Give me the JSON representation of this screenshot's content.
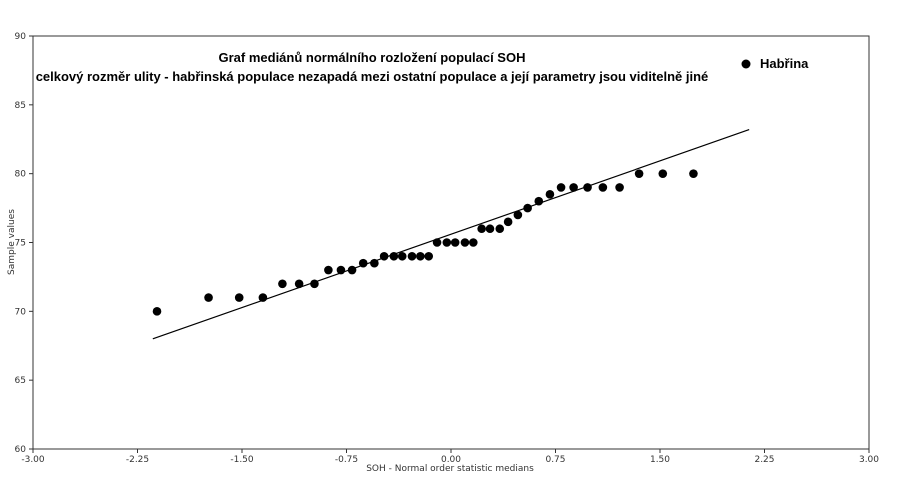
{
  "chart_data": {
    "type": "scatter",
    "title": "Graf mediánů normálního rozložení populací SOH",
    "subtitle": "celkový rozměr ulity - habřinská populace nezapadá mezi ostatní populace a její parametry jsou viditelně jiné",
    "xlabel": "SOH - Normal order statistic medians",
    "ylabel": "Sample values",
    "xlim": [
      -3.0,
      3.0
    ],
    "ylim": [
      60,
      90
    ],
    "xticks": [
      -3.0,
      -2.25,
      -1.5,
      -0.75,
      0.0,
      0.75,
      1.5,
      2.25,
      3.0
    ],
    "xtick_labels": [
      "-3.00",
      "-2.25",
      "-1.50",
      "-0.75",
      "0.00",
      "0.75",
      "1.50",
      "2.25",
      "3.00"
    ],
    "yticks": [
      60,
      65,
      70,
      75,
      80,
      85,
      90
    ],
    "ytick_labels": [
      "60",
      "65",
      "70",
      "75",
      "80",
      "85",
      "90"
    ],
    "grid": false,
    "legend_position": "top-right",
    "series": [
      {
        "name": "Habřina",
        "color": "#000000",
        "points": [
          [
            -2.11,
            70
          ],
          [
            -1.74,
            71
          ],
          [
            -1.52,
            71
          ],
          [
            -1.35,
            71
          ],
          [
            -1.21,
            72
          ],
          [
            -1.09,
            72
          ],
          [
            -0.98,
            72
          ],
          [
            -0.88,
            73
          ],
          [
            -0.79,
            73
          ],
          [
            -0.71,
            73
          ],
          [
            -0.63,
            73.5
          ],
          [
            -0.55,
            73.5
          ],
          [
            -0.48,
            74
          ],
          [
            -0.41,
            74
          ],
          [
            -0.35,
            74
          ],
          [
            -0.28,
            74
          ],
          [
            -0.22,
            74
          ],
          [
            -0.16,
            74
          ],
          [
            -0.1,
            75
          ],
          [
            -0.03,
            75
          ],
          [
            0.03,
            75
          ],
          [
            0.1,
            75
          ],
          [
            0.16,
            75
          ],
          [
            0.22,
            76
          ],
          [
            0.28,
            76
          ],
          [
            0.35,
            76
          ],
          [
            0.41,
            76.5
          ],
          [
            0.48,
            77
          ],
          [
            0.55,
            77.5
          ],
          [
            0.63,
            78
          ],
          [
            0.71,
            78.5
          ],
          [
            0.79,
            79
          ],
          [
            0.88,
            79
          ],
          [
            0.98,
            79
          ],
          [
            1.09,
            79
          ],
          [
            1.21,
            79
          ],
          [
            1.35,
            80
          ],
          [
            1.52,
            80
          ],
          [
            1.74,
            80
          ]
        ]
      }
    ],
    "fit_line": {
      "color": "#000000",
      "points": [
        [
          -2.14,
          68.0
        ],
        [
          2.14,
          83.2
        ]
      ]
    }
  }
}
